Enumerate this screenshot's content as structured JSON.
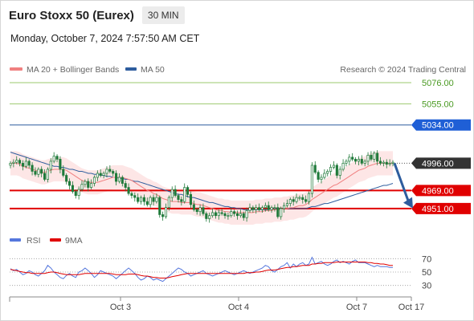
{
  "header": {
    "title": "Euro Stoxx 50 (Eurex)",
    "timeframe": "30 MIN",
    "datetime": "Monday, October 7, 2024 7:57:50 AM CET"
  },
  "legend": {
    "ma20": "MA 20 + Bollinger Bands",
    "ma50": "MA 50",
    "credit": "Research © 2024 Trading Central",
    "rsi": "RSI",
    "ma9": "9MA"
  },
  "colors": {
    "ma20": "#f08080",
    "ma50": "#2e5d9e",
    "bands_fill": "#fde2e2",
    "candle": "#1f7a3a",
    "support": "#e00000",
    "resistance_green": "#9bc86e",
    "resistance_blue": "#2e5d9e",
    "arrow": "#2e5d9e",
    "rsi": "#5577dd",
    "rsi_ma": "#e00000",
    "price_dark": "#333333"
  },
  "chart_data": [
    {
      "type": "candlestick",
      "x_tick_labels": [
        "Oct 3",
        "Oct 4",
        "Oct 7",
        "Oct 17"
      ],
      "ylim": [
        4935,
        5080
      ],
      "levels": [
        {
          "value": 5076.0,
          "label": "5076.00",
          "kind": "resistance"
        },
        {
          "value": 5055.0,
          "label": "5055.00",
          "kind": "resistance"
        },
        {
          "value": 5034.0,
          "label": "5034.00",
          "kind": "resistance-blue"
        },
        {
          "value": 4996.0,
          "label": "4996.00",
          "kind": "last-price"
        },
        {
          "value": 4969.0,
          "label": "4969.00",
          "kind": "support"
        },
        {
          "value": 4951.0,
          "label": "4951.00",
          "kind": "support"
        }
      ],
      "close": [
        4996,
        4997,
        4999,
        4996,
        4993,
        4998,
        4994,
        4988,
        4985,
        4990,
        4986,
        4980,
        4990,
        4998,
        5003,
        5000,
        4990,
        4984,
        4978,
        4974,
        4968,
        4964,
        4970,
        4975,
        4978,
        4972,
        4976,
        4982,
        4986,
        4984,
        4986,
        4990,
        4988,
        4986,
        4978,
        4982,
        4976,
        4972,
        4966,
        4964,
        4962,
        4958,
        4962,
        4958,
        4955,
        4962,
        4958,
        4962,
        4945,
        4943,
        4952,
        4962,
        4970,
        4964,
        4960,
        4958,
        4972,
        4965,
        4955,
        4950,
        4948,
        4952,
        4946,
        4941,
        4944,
        4947,
        4944,
        4947,
        4946,
        4944,
        4944,
        4948,
        4946,
        4944,
        4946,
        4942,
        4949,
        4952,
        4950,
        4952,
        4950,
        4952,
        4954,
        4950,
        4952,
        4952,
        4943,
        4951,
        4954,
        4956,
        4960,
        4958,
        4962,
        4962,
        4960,
        4958,
        4966,
        4994,
        4987,
        4980,
        4982,
        4986,
        4988,
        4992,
        4994,
        4984,
        4990,
        4996,
        4998,
        5002,
        5000,
        4998,
        5000,
        4996,
        4998,
        5004,
        5000,
        5006,
        4998,
        4996,
        4997,
        4995,
        4996,
        4997
      ],
      "ma20": [
        4996,
        4996,
        4996,
        4995,
        4993,
        4992,
        4991,
        4990,
        4989,
        4988,
        4987,
        4987,
        4988,
        4989,
        4990,
        4990,
        4990,
        4990,
        4989,
        4987,
        4985,
        4983,
        4981,
        4979,
        4978,
        4977,
        4977,
        4977,
        4977,
        4978,
        4979,
        4980,
        4981,
        4982,
        4982,
        4982,
        4982,
        4981,
        4980,
        4979,
        4977,
        4975,
        4973,
        4971,
        4969,
        4968,
        4966,
        4965,
        4963,
        4961,
        4960,
        4959,
        4958,
        4958,
        4958,
        4957,
        4957,
        4957,
        4957,
        4956,
        4955,
        4955,
        4954,
        4953,
        4952,
        4951,
        4950,
        4949,
        4949,
        4948,
        4948,
        4947,
        4947,
        4947,
        4947,
        4947,
        4947,
        4947,
        4947,
        4948,
        4948,
        4948,
        4949,
        4949,
        4949,
        4950,
        4950,
        4950,
        4951,
        4951,
        4952,
        4952,
        4953,
        4954,
        4954,
        4955,
        4957,
        4960,
        4962,
        4964,
        4966,
        4968,
        4970,
        4972,
        4974,
        4975,
        4977,
        4979,
        4981,
        4983,
        4985,
        4987,
        4989,
        4990,
        4991,
        4993,
        4994,
        4995,
        4996,
        4996,
        4996,
        4996,
        4996,
        4996
      ],
      "ma50": [
        5007,
        5006,
        5005,
        5004,
        5003,
        5002,
        5001,
        5000,
        4999,
        4998,
        4997,
        4996,
        4995,
        4994,
        4993,
        4993,
        4992,
        4992,
        4991,
        4990,
        4990,
        4989,
        4988,
        4988,
        4987,
        4986,
        4986,
        4985,
        4985,
        4984,
        4984,
        4983,
        4983,
        4982,
        4982,
        4981,
        4981,
        4980,
        4980,
        4979,
        4978,
        4978,
        4977,
        4976,
        4975,
        4974,
        4973,
        4972,
        4971,
        4970,
        4969,
        4968,
        4967,
        4966,
        4965,
        4965,
        4964,
        4963,
        4962,
        4962,
        4961,
        4960,
        4959,
        4958,
        4957,
        4957,
        4956,
        4955,
        4954,
        4953,
        4953,
        4952,
        4952,
        4951,
        4951,
        4950,
        4950,
        4950,
        4950,
        4950,
        4950,
        4950,
        4950,
        4950,
        4951,
        4951,
        4951,
        4951,
        4951,
        4951,
        4951,
        4951,
        4951,
        4951,
        4951,
        4951,
        4952,
        4953,
        4953,
        4954,
        4955,
        4956,
        4956,
        4957,
        4958,
        4959,
        4960,
        4961,
        4962,
        4963,
        4964,
        4965,
        4966,
        4967,
        4968,
        4969,
        4970,
        4971,
        4972,
        4973,
        4974,
        4974,
        4975,
        4976
      ],
      "bb_width": 12,
      "forecast_arrow": {
        "from": 4996,
        "to": 4952
      }
    },
    {
      "type": "line",
      "y_tick_labels": [
        "70",
        "50",
        "30"
      ],
      "ylim": [
        20,
        80
      ],
      "levels": [
        70,
        50,
        30
      ],
      "series": [
        {
          "key": "rsi",
          "values": [
            55,
            52,
            54,
            50,
            46,
            48,
            52,
            50,
            46,
            44,
            48,
            52,
            60,
            56,
            50,
            46,
            42,
            40,
            45,
            48,
            44,
            42,
            50,
            52,
            56,
            52,
            48,
            42,
            46,
            52,
            50,
            48,
            46,
            44,
            40,
            44,
            48,
            52,
            56,
            52,
            48,
            42,
            38,
            40,
            44,
            42,
            38,
            40,
            38,
            36,
            40,
            44,
            48,
            52,
            56,
            54,
            50,
            48,
            44,
            46,
            48,
            50,
            52,
            48,
            46,
            44,
            46,
            48,
            50,
            52,
            50,
            48,
            46,
            48,
            50,
            52,
            50,
            48,
            50,
            52,
            54,
            56,
            60,
            58,
            52,
            50,
            54,
            58,
            60,
            64,
            56,
            62,
            58,
            62,
            64,
            60,
            62,
            72,
            62,
            64,
            66,
            62,
            60,
            62,
            66,
            68,
            64,
            66,
            64,
            62,
            66,
            68,
            64,
            64,
            64,
            62,
            60,
            58,
            60,
            58,
            58,
            58,
            57,
            57
          ]
        },
        {
          "key": "rsi_ma",
          "values": [
            54,
            53,
            52,
            51,
            50,
            49,
            49,
            48,
            48,
            48,
            48,
            48,
            49,
            50,
            50,
            49,
            48,
            47,
            46,
            46,
            46,
            46,
            46,
            47,
            48,
            48,
            48,
            48,
            48,
            48,
            48,
            48,
            48,
            47,
            46,
            46,
            46,
            46,
            47,
            47,
            47,
            46,
            45,
            44,
            44,
            43,
            42,
            42,
            41,
            41,
            41,
            42,
            43,
            44,
            45,
            46,
            47,
            48,
            48,
            48,
            48,
            48,
            48,
            48,
            48,
            48,
            48,
            48,
            48,
            48,
            48,
            48,
            48,
            48,
            48,
            48,
            49,
            49,
            49,
            50,
            50,
            51,
            52,
            53,
            53,
            53,
            54,
            55,
            56,
            57,
            57,
            58,
            58,
            59,
            60,
            60,
            60,
            62,
            62,
            63,
            63,
            64,
            64,
            64,
            64,
            65,
            65,
            65,
            65,
            65,
            65,
            65,
            65,
            65,
            65,
            64,
            64,
            63,
            63,
            62,
            62,
            61,
            60,
            60
          ]
        }
      ]
    }
  ]
}
